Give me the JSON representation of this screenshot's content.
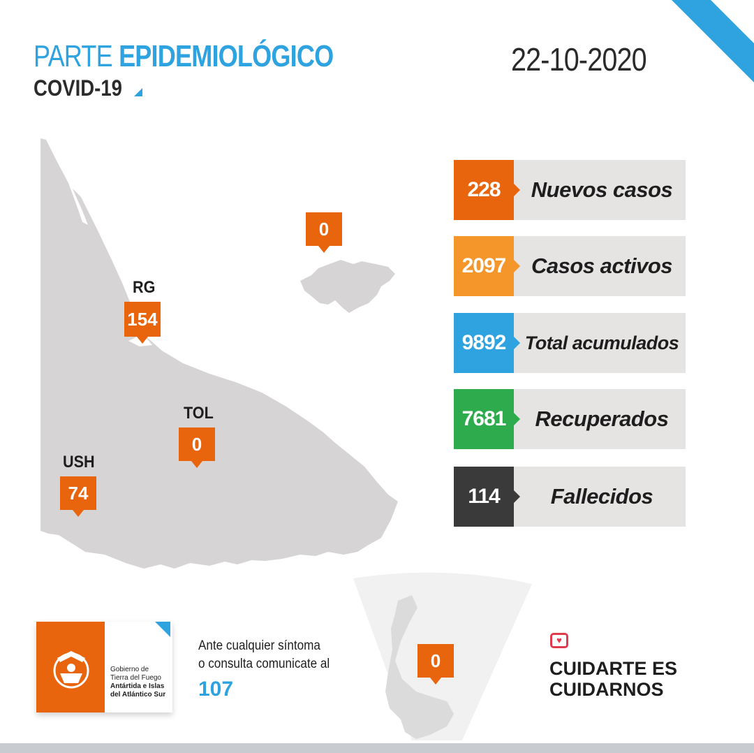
{
  "header": {
    "title_light": "PARTE ",
    "title_bold": "EPIDEMIOLÓGICO",
    "subtitle": "COVID-19",
    "date": "22-10-2020"
  },
  "map": {
    "malvinas_value": "0",
    "rg_label": "RG",
    "rg_value": "154",
    "tol_label": "TOL",
    "tol_value": "0",
    "ush_label": "USH",
    "ush_value": "74",
    "antartida_value": "0"
  },
  "stats": [
    {
      "value": "228",
      "label": "Nuevos casos",
      "color": "#e8650d"
    },
    {
      "value": "2097",
      "label": "Casos activos",
      "color": "#f4962a"
    },
    {
      "value": "9892",
      "label": "Total acumulados",
      "color": "#2ea3e0"
    },
    {
      "value": "7681",
      "label": "Recuperados",
      "color": "#2eac4d"
    },
    {
      "value": "114",
      "label": "Fallecidos",
      "color": "#3a3a3a"
    }
  ],
  "footer": {
    "logo_line1": "Gobierno de",
    "logo_line2": "Tierra del Fuego",
    "logo_line3": "Antártida e Islas",
    "logo_line4": "del Atlántico Sur",
    "contact_line1": "Ante cualquier síntoma",
    "contact_line2": "o consulta comunicate al",
    "contact_number": "107",
    "slogan_line1": "CUIDARTE ES",
    "slogan_line2": "CUIDARNOS"
  }
}
